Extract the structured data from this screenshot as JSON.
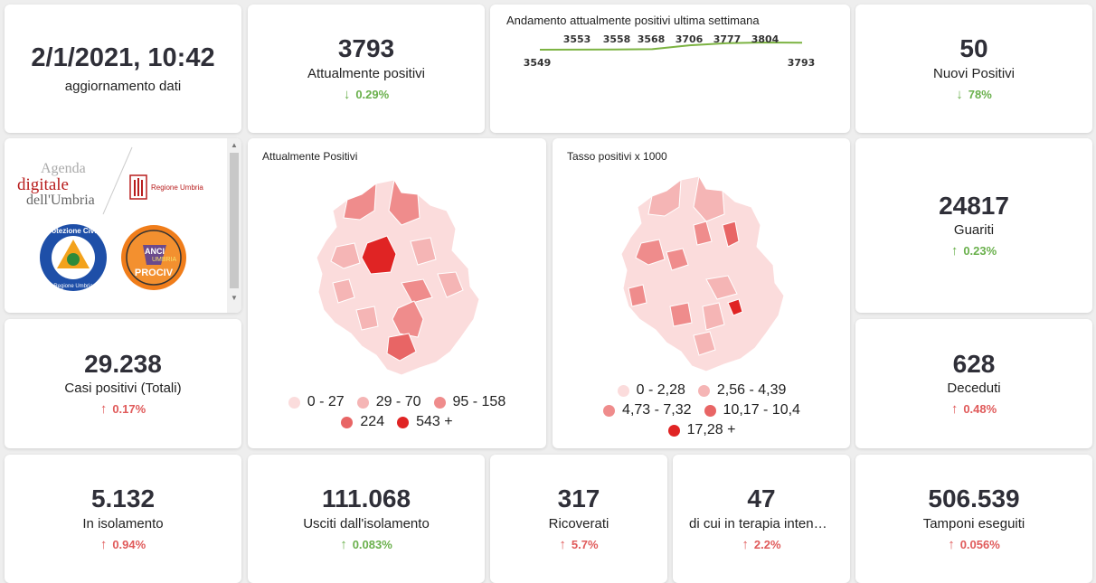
{
  "update": {
    "datetime": "2/1/2021, 10:42",
    "label": "aggiornamento dati"
  },
  "attualmente": {
    "value": "3793",
    "label": "Attualmente positivi",
    "delta": "0.29%"
  },
  "trend": {
    "title": "Andamento attualmente positivi ultima settimana",
    "chart_data": {
      "type": "line",
      "title": "Andamento attualmente positivi ultima settimana",
      "x": [
        1,
        2,
        3,
        4,
        5,
        6,
        7,
        8
      ],
      "values": [
        3549,
        3553,
        3558,
        3568,
        3706,
        3777,
        3804,
        3793
      ],
      "labels": [
        "3549",
        "3553",
        "3558",
        "3568",
        "3706",
        "3777",
        "3804",
        "3793"
      ],
      "color": "#7cb342"
    }
  },
  "nuovi": {
    "value": "50",
    "label": "Nuovi Positivi",
    "delta": "78%"
  },
  "logos": {
    "agenda_line1": "Agenda",
    "agenda_line2": "digitale",
    "agenda_line3": "dell'Umbria",
    "regione": "Regione Umbria",
    "protezione": "Protezione Civile",
    "protezione_sub": "Regione Umbria",
    "anci_line1": "ANCI",
    "anci_line2": "UMBRIA",
    "anci_line3": "PROCIV"
  },
  "map1": {
    "title": "Attualmente Positivi",
    "legend": [
      {
        "label": "0 - 27",
        "color": "#fbdcdc"
      },
      {
        "label": "29 - 70",
        "color": "#f5b5b5"
      },
      {
        "label": "95 - 158",
        "color": "#ef8c8c"
      },
      {
        "label": "224",
        "color": "#e86565"
      },
      {
        "label": "543 +",
        "color": "#e02424"
      }
    ]
  },
  "map2": {
    "title": "Tasso positivi x 1000",
    "legend": [
      {
        "label": "0 - 2,28",
        "color": "#fbdcdc"
      },
      {
        "label": "2,56 - 4,39",
        "color": "#f5b5b5"
      },
      {
        "label": "4,73 - 7,32",
        "color": "#ef8c8c"
      },
      {
        "label": "10,17 - 10,4",
        "color": "#e86565"
      },
      {
        "label": "17,28 +",
        "color": "#e02424"
      }
    ]
  },
  "guariti": {
    "value": "24817",
    "label": "Guariti",
    "delta": "0.23%"
  },
  "casi": {
    "value": "29.238",
    "label": "Casi positivi (Totali)",
    "delta": "0.17%"
  },
  "deceduti": {
    "value": "628",
    "label": "Deceduti",
    "delta": "0.48%"
  },
  "isolamento": {
    "value": "5.132",
    "label": "In isolamento",
    "delta": "0.94%"
  },
  "usciti": {
    "value": "111.068",
    "label": "Usciti dall'isolamento",
    "delta": "0.083%"
  },
  "ricoverati": {
    "value": "317",
    "label": "Ricoverati",
    "delta": "5.7%"
  },
  "terapia": {
    "value": "47",
    "label": "di cui in terapia intensiva",
    "delta": "2.2%"
  },
  "tamponi": {
    "value": "506.539",
    "label": "Tamponi eseguiti",
    "delta": "0.056%"
  },
  "icons": {
    "up": "arrow-up-icon",
    "down": "arrow-down-icon"
  }
}
